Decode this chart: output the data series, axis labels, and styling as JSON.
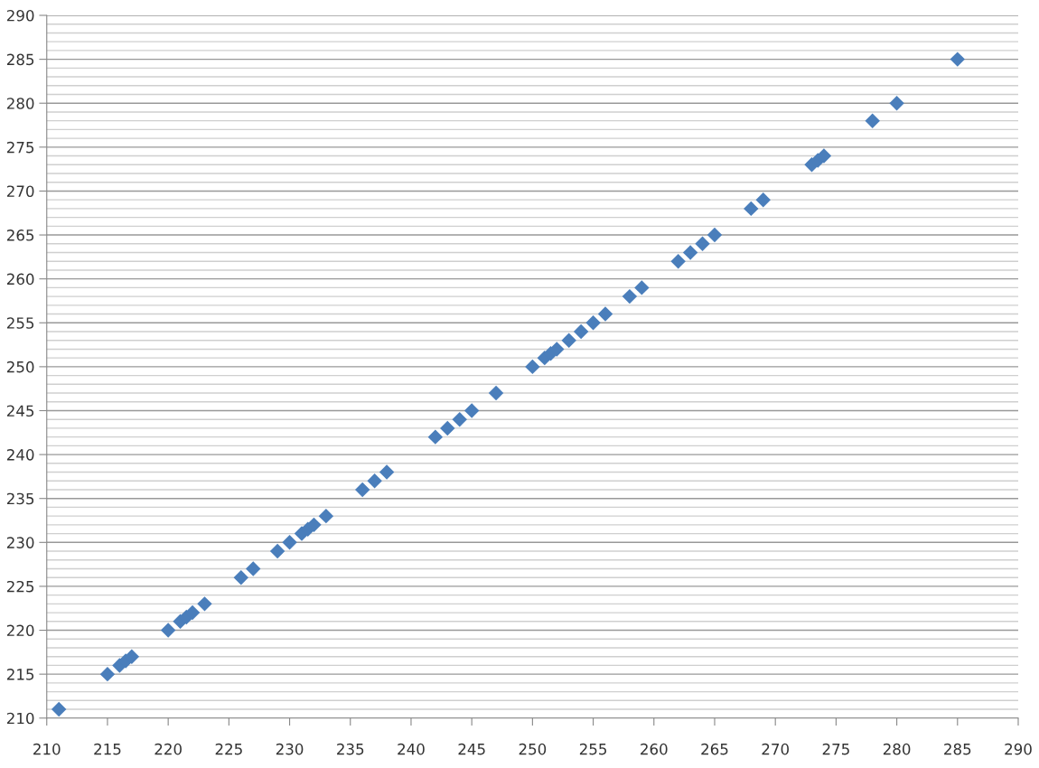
{
  "chart_data": {
    "type": "scatter",
    "marker": "diamond",
    "grid": "y",
    "legend": false,
    "xlim": [
      210,
      290
    ],
    "xticks": [
      210,
      215,
      220,
      225,
      230,
      235,
      240,
      245,
      250,
      255,
      260,
      265,
      270,
      275,
      280,
      285,
      290
    ],
    "ylim": [
      210,
      290
    ],
    "yticks": [
      210,
      {
        "value": 211,
        "label": null
      },
      {
        "value": 212,
        "label": null
      },
      {
        "value": 213,
        "label": null
      },
      {
        "value": 214,
        "label": null
      },
      215,
      {
        "value": 216,
        "label": null
      },
      {
        "value": 217,
        "label": null
      },
      {
        "value": 218,
        "label": null
      },
      {
        "value": 219,
        "label": null
      },
      220,
      {
        "value": 221,
        "label": null
      },
      {
        "value": 222,
        "label": null
      },
      {
        "value": 223,
        "label": null
      },
      {
        "value": 224,
        "label": null
      },
      225,
      {
        "value": 226,
        "label": null
      },
      {
        "value": 227,
        "label": null
      },
      {
        "value": 228,
        "label": null
      },
      {
        "value": 229,
        "label": null
      },
      230,
      {
        "value": 231,
        "label": null
      },
      {
        "value": 232,
        "label": null
      },
      {
        "value": 233,
        "label": null
      },
      {
        "value": 234,
        "label": null
      },
      235,
      {
        "value": 236,
        "label": null
      },
      {
        "value": 237,
        "label": null
      },
      {
        "value": 238,
        "label": null
      },
      {
        "value": 239,
        "label": null
      },
      240,
      {
        "value": 241,
        "label": null
      },
      {
        "value": 242,
        "label": null
      },
      {
        "value": 243,
        "label": null
      },
      {
        "value": 244,
        "label": null
      },
      245,
      {
        "value": 246,
        "label": null
      },
      {
        "value": 247,
        "label": null
      },
      {
        "value": 248,
        "label": null
      },
      {
        "value": 249,
        "label": null
      },
      250,
      {
        "value": 251,
        "label": null
      },
      {
        "value": 252,
        "label": null
      },
      {
        "value": 253,
        "label": null
      },
      {
        "value": 254,
        "label": null
      },
      255,
      {
        "value": 256,
        "label": null
      },
      {
        "value": 257,
        "label": null
      },
      {
        "value": 258,
        "label": null
      },
      {
        "value": 259,
        "label": null
      },
      260,
      {
        "value": 261,
        "label": null
      },
      {
        "value": 262,
        "label": null
      },
      {
        "value": 263,
        "label": null
      },
      {
        "value": 264,
        "label": null
      },
      265,
      {
        "value": 266,
        "label": null
      },
      {
        "value": 267,
        "label": null
      },
      {
        "value": 268,
        "label": null
      },
      {
        "value": 269,
        "label": null
      },
      270,
      {
        "value": 271,
        "label": null
      },
      {
        "value": 272,
        "label": null
      },
      {
        "value": 273,
        "label": null
      },
      {
        "value": 274,
        "label": null
      },
      275,
      {
        "value": 276,
        "label": null
      },
      {
        "value": 277,
        "label": null
      },
      {
        "value": 278,
        "label": null
      },
      {
        "value": 279,
        "label": null
      },
      280,
      {
        "value": 281,
        "label": null
      },
      {
        "value": 282,
        "label": null
      },
      {
        "value": 283,
        "label": null
      },
      {
        "value": 284,
        "label": null
      },
      285,
      {
        "value": 286,
        "label": null
      },
      {
        "value": 287,
        "label": null
      },
      {
        "value": 288,
        "label": null
      },
      {
        "value": 289,
        "label": null
      },
      290
    ],
    "x": [
      211,
      215,
      216,
      216.5,
      217,
      220,
      221,
      221.5,
      222,
      223,
      226,
      227,
      229,
      230,
      231,
      231.5,
      232,
      233,
      236,
      237,
      238,
      242,
      243,
      244,
      245,
      247,
      250,
      251,
      251.5,
      252,
      253,
      254,
      255,
      256,
      258,
      259,
      262,
      263,
      264,
      265,
      268,
      269,
      273,
      273.5,
      274,
      278,
      280,
      285
    ],
    "series": [
      {
        "color": "#4a7ebb",
        "values": [
          211,
          215,
          216,
          216.5,
          217,
          220,
          221,
          221.5,
          222,
          223,
          226,
          227,
          229,
          230,
          231,
          231.5,
          232,
          233,
          236,
          237,
          238,
          242,
          243,
          244,
          245,
          247,
          250,
          251,
          251.5,
          252,
          253,
          254,
          255,
          256,
          258,
          259,
          262,
          263,
          264,
          265,
          268,
          269,
          273,
          273.5,
          274,
          278,
          280,
          285
        ]
      }
    ]
  }
}
